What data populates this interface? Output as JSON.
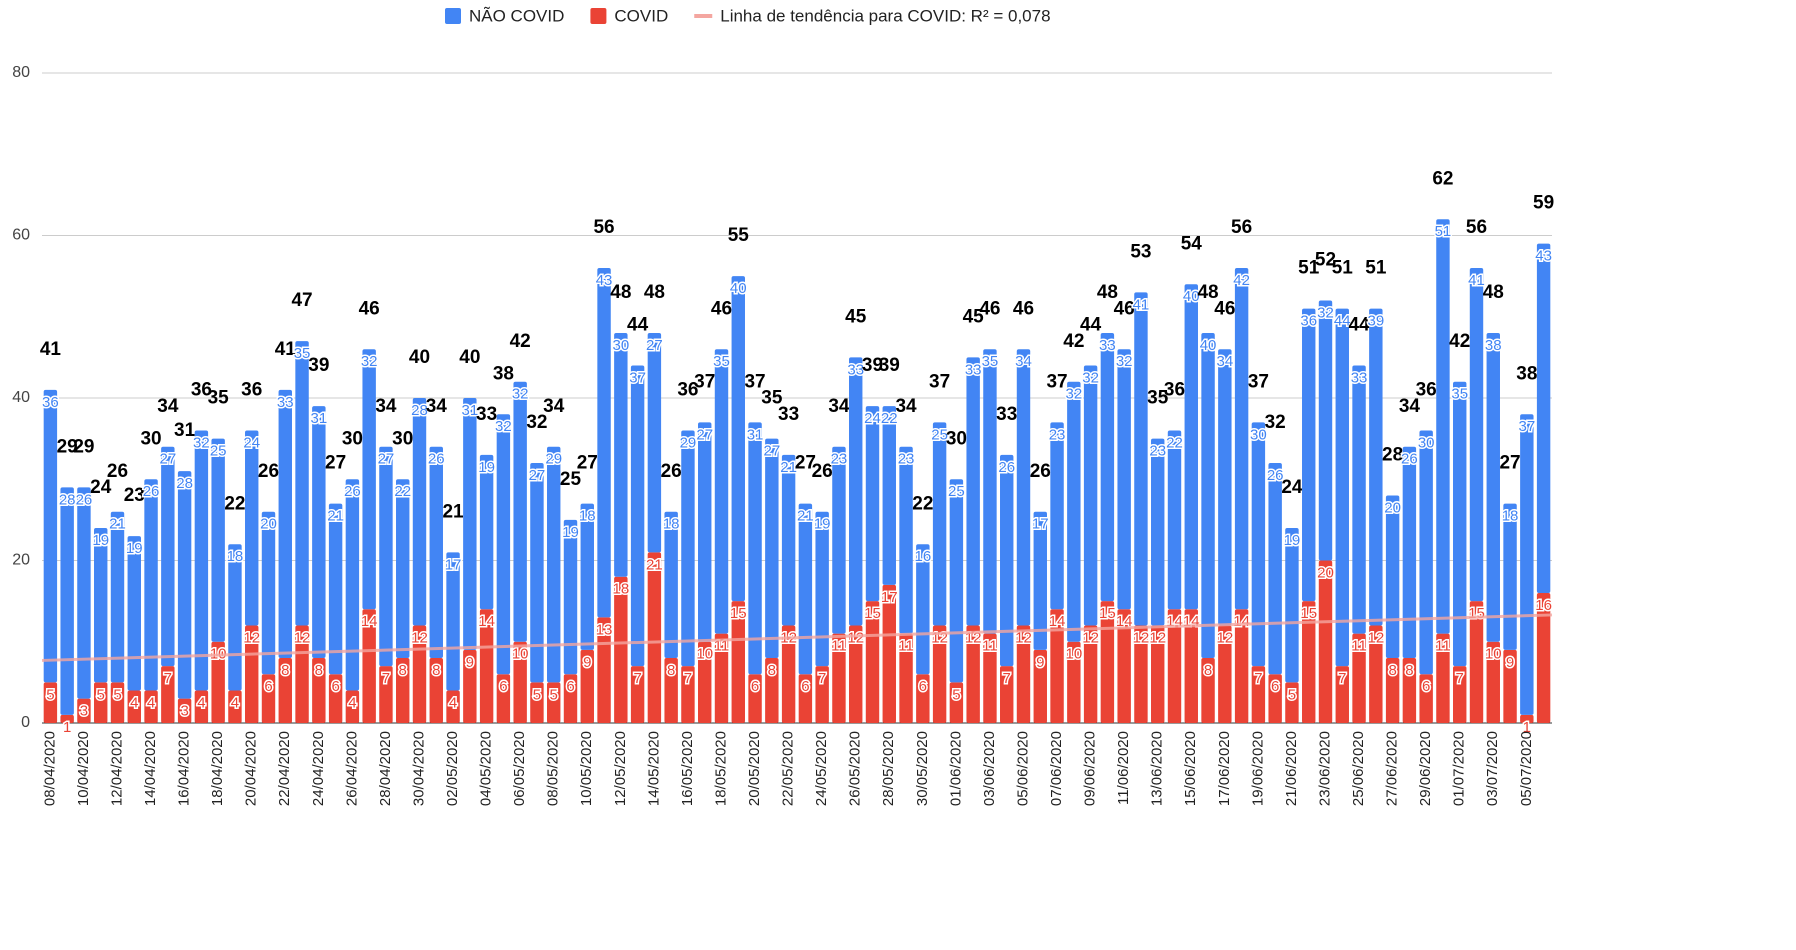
{
  "chart_data": {
    "type": "stacked_bar",
    "categories": [
      "08/04/2020",
      null,
      "10/04/2020",
      null,
      "12/04/2020",
      null,
      "14/04/2020",
      null,
      "16/04/2020",
      null,
      "18/04/2020",
      null,
      "20/04/2020",
      null,
      "22/04/2020",
      null,
      "24/04/2020",
      null,
      "26/04/2020",
      null,
      "28/04/2020",
      null,
      "30/04/2020",
      null,
      "02/05/2020",
      null,
      "04/05/2020",
      null,
      "06/05/2020",
      null,
      "08/05/2020",
      null,
      "10/05/2020",
      null,
      "12/05/2020",
      null,
      "14/05/2020",
      null,
      "16/05/2020",
      null,
      "18/05/2020",
      null,
      "20/05/2020",
      null,
      "22/05/2020",
      null,
      "24/05/2020",
      null,
      "26/05/2020",
      null,
      "28/05/2020",
      null,
      "30/05/2020",
      null,
      "01/06/2020",
      null,
      "03/06/2020",
      null,
      "05/06/2020",
      null,
      "07/06/2020",
      null,
      "09/06/2020",
      null,
      "11/06/2020",
      null,
      "13/06/2020",
      null,
      "15/06/2020",
      null,
      "17/06/2020",
      null,
      "19/06/2020",
      null,
      "21/06/2020",
      null,
      "23/06/2020",
      null,
      "25/06/2020",
      null,
      "27/06/2020",
      null,
      "29/06/2020",
      null,
      "01/07/2020",
      null,
      "03/07/2020",
      null,
      "05/07/2020",
      null
    ],
    "series": [
      {
        "name": "NÃO COVID",
        "color": "#4285f4",
        "values": [
          36,
          28,
          26,
          19,
          21,
          19,
          26,
          27,
          28,
          32,
          25,
          18,
          24,
          20,
          33,
          35,
          31,
          21,
          26,
          32,
          27,
          22,
          28,
          26,
          17,
          31,
          19,
          32,
          32,
          27,
          29,
          19,
          18,
          43,
          30,
          37,
          27,
          18,
          29,
          27,
          35,
          40,
          31,
          27,
          21,
          21,
          19,
          23,
          33,
          24,
          22,
          23,
          16,
          25,
          25,
          33,
          35,
          26,
          34,
          17,
          23,
          32,
          32,
          33,
          32,
          41,
          23,
          22,
          40,
          40,
          34,
          42,
          30,
          26,
          19,
          36,
          32,
          44,
          33,
          39,
          20,
          26,
          30,
          51,
          35,
          41,
          38,
          18,
          37,
          43
        ]
      },
      {
        "name": "COVID",
        "color": "#ea4335",
        "values": [
          5,
          1,
          3,
          5,
          5,
          4,
          4,
          7,
          3,
          4,
          10,
          4,
          12,
          6,
          8,
          12,
          8,
          6,
          4,
          14,
          7,
          8,
          12,
          8,
          4,
          9,
          14,
          6,
          10,
          5,
          5,
          6,
          9,
          13,
          18,
          7,
          21,
          8,
          7,
          10,
          11,
          15,
          6,
          8,
          12,
          6,
          7,
          11,
          12,
          15,
          17,
          11,
          6,
          12,
          5,
          12,
          11,
          7,
          12,
          9,
          14,
          10,
          12,
          15,
          14,
          12,
          12,
          14,
          14,
          8,
          12,
          14,
          7,
          6,
          5,
          15,
          20,
          7,
          11,
          12,
          8,
          8,
          6,
          11,
          7,
          15,
          10,
          9,
          1,
          16
        ]
      }
    ],
    "totals": [
      41,
      29,
      29,
      24,
      26,
      23,
      30,
      34,
      31,
      36,
      35,
      22,
      36,
      26,
      41,
      47,
      39,
      27,
      30,
      46,
      34,
      30,
      40,
      34,
      21,
      40,
      33,
      38,
      42,
      32,
      34,
      25,
      27,
      56,
      48,
      44,
      48,
      26,
      36,
      37,
      46,
      55,
      37,
      35,
      33,
      27,
      26,
      34,
      45,
      39,
      39,
      34,
      22,
      37,
      30,
      45,
      46,
      33,
      46,
      26,
      37,
      42,
      44,
      48,
      46,
      53,
      35,
      36,
      54,
      48,
      46,
      56,
      37,
      32,
      24,
      51,
      52,
      51,
      44,
      51,
      28,
      34,
      36,
      62,
      42,
      56,
      48,
      27,
      38,
      59
    ],
    "trendline": {
      "name": "Linha de tendência para COVID: R² = 0,078",
      "color": "#f4a6a0",
      "start": 7.7,
      "end": 13.3
    },
    "ylim": [
      0,
      80
    ],
    "yticks": [
      0,
      20,
      40,
      60,
      80
    ],
    "grid": true
  }
}
